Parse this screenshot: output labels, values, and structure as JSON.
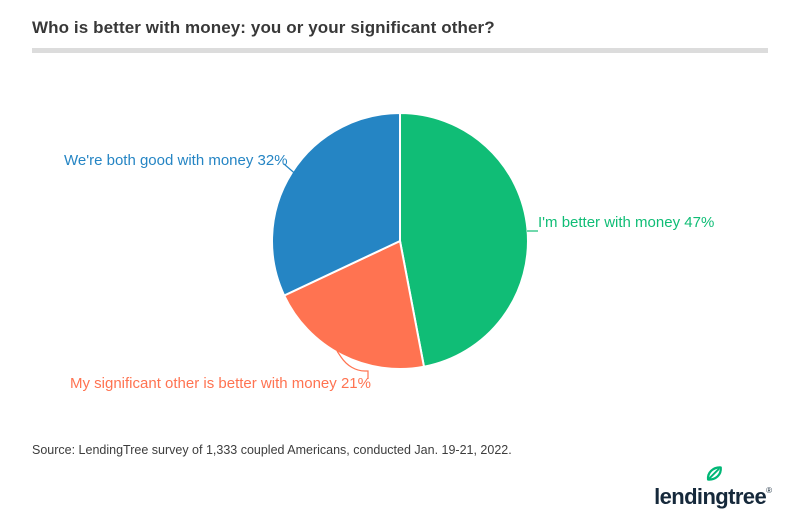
{
  "page": {
    "title": "Who is better with money: you or your significant other?",
    "source": "Source: LendingTree survey of 1,333 coupled Americans, conducted Jan. 19-21, 2022.",
    "logo": {
      "text": "lendingtree",
      "registered": "®",
      "navy": "#16293b",
      "leaf_green": "#00b776"
    }
  },
  "chart_data": {
    "type": "pie",
    "title": "Who is better with money: you or your significant other?",
    "start_angle": "top",
    "direction": "clockwise",
    "legend_position": "outside-labels-with-leaders",
    "slices": [
      {
        "label": "I'm better with money",
        "value": 47,
        "pct": "47%",
        "color": "#10bd76"
      },
      {
        "label": "My significant other is better with money",
        "value": 21,
        "pct": "21%",
        "color": "#ff7351"
      },
      {
        "label": "We're both good with money",
        "value": 32,
        "pct": "32%",
        "color": "#2585c4"
      }
    ]
  }
}
